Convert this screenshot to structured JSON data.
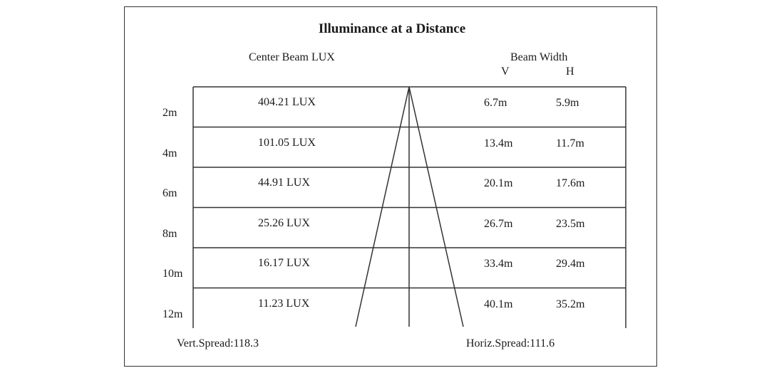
{
  "title": "Illuminance at a Distance",
  "headers": {
    "center_beam": "Center Beam LUX",
    "beam_width": "Beam Width",
    "v": "V",
    "h": "H"
  },
  "rows": [
    {
      "distance": "2m",
      "lux": "404.21 LUX",
      "v": "6.7m",
      "h": "5.9m"
    },
    {
      "distance": "4m",
      "lux": "101.05 LUX",
      "v": "13.4m",
      "h": "11.7m"
    },
    {
      "distance": "6m",
      "lux": "44.91 LUX",
      "v": "20.1m",
      "h": "17.6m"
    },
    {
      "distance": "8m",
      "lux": "25.26 LUX",
      "v": "26.7m",
      "h": "23.5m"
    },
    {
      "distance": "10m",
      "lux": "16.17 LUX",
      "v": "33.4m",
      "h": "29.4m"
    },
    {
      "distance": "12m",
      "lux": "11.23 LUX",
      "v": "40.1m",
      "h": "35.2m"
    }
  ],
  "footer": {
    "vert_spread": "Vert.Spread:118.3",
    "horiz_spread": "Horiz.Spread:111.6"
  },
  "colors": {
    "line": "#333333",
    "text": "#1a1a1a"
  }
}
